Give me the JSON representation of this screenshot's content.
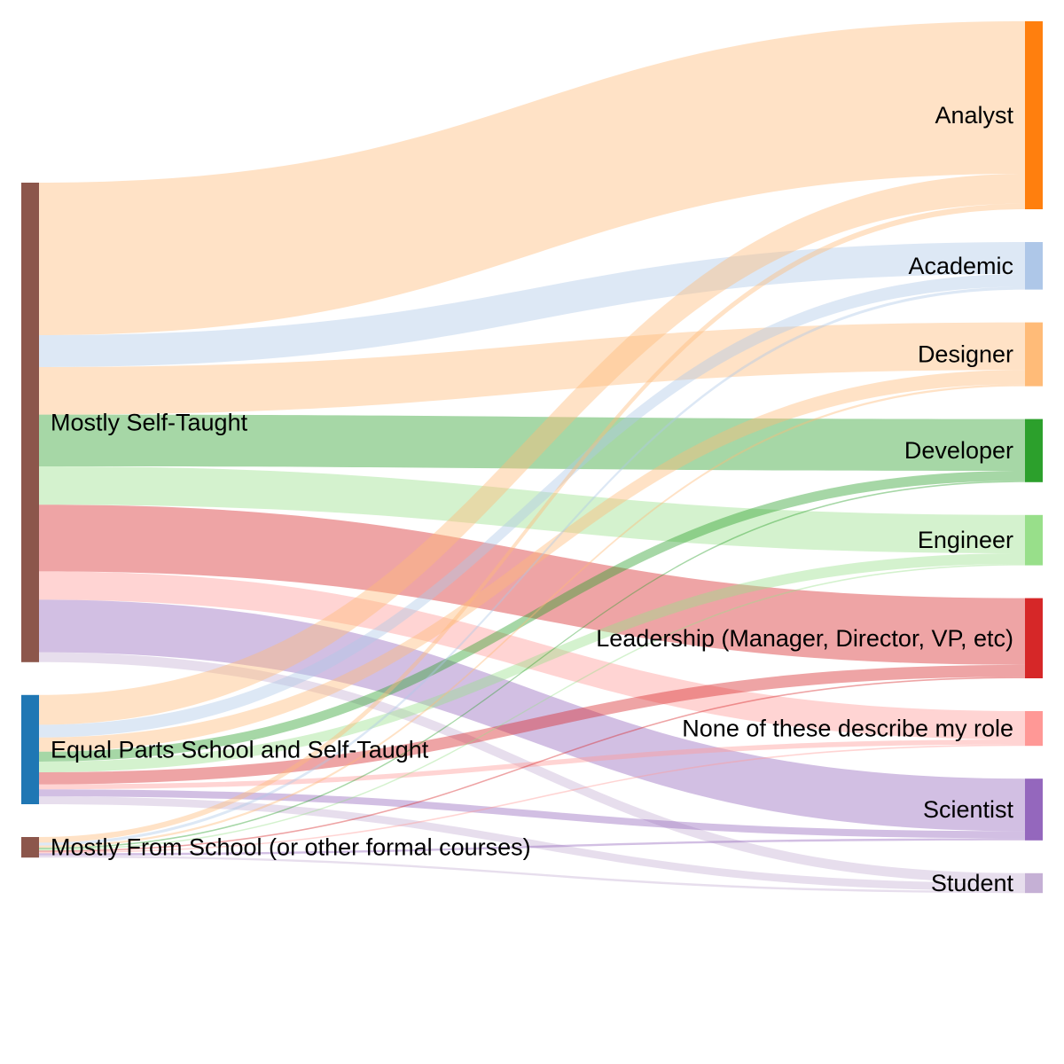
{
  "chart_data": {
    "type": "sankey",
    "sources": [
      {
        "id": "self",
        "label": "Mostly Self-Taught",
        "color": "#8c564b"
      },
      {
        "id": "equal",
        "label": "Equal Parts School and Self-Taught",
        "color": "#1f77b4"
      },
      {
        "id": "school",
        "label": "Mostly From School (or other formal courses)",
        "color": "#8c564b"
      }
    ],
    "targets": [
      {
        "id": "analyst",
        "label": "Analyst",
        "color": "#ff7f0e",
        "link_color": "#ffbb78"
      },
      {
        "id": "academic",
        "label": "Academic",
        "color": "#aec7e8",
        "link_color": "#aec7e8"
      },
      {
        "id": "designer",
        "label": "Designer",
        "color": "#ffbb78",
        "link_color": "#ffbb78"
      },
      {
        "id": "developer",
        "label": "Developer",
        "color": "#2ca02c",
        "link_color": "#2ca02c"
      },
      {
        "id": "engineer",
        "label": "Engineer",
        "color": "#98df8a",
        "link_color": "#98df8a"
      },
      {
        "id": "leadership",
        "label": "Leadership (Manager, Director, VP, etc)",
        "color": "#d62728",
        "link_color": "#d62728"
      },
      {
        "id": "none",
        "label": "None of these describe my role",
        "color": "#ff9896",
        "link_color": "#ff9896"
      },
      {
        "id": "scientist",
        "label": "Scientist",
        "color": "#9467bd",
        "link_color": "#9467bd"
      },
      {
        "id": "student",
        "label": "Student",
        "color": "#c5b0d5",
        "link_color": "#c5b0d5"
      }
    ],
    "links": [
      {
        "source": "self",
        "target": "analyst",
        "value": 215
      },
      {
        "source": "self",
        "target": "academic",
        "value": 45
      },
      {
        "source": "self",
        "target": "designer",
        "value": 67
      },
      {
        "source": "self",
        "target": "developer",
        "value": 73
      },
      {
        "source": "self",
        "target": "engineer",
        "value": 54
      },
      {
        "source": "self",
        "target": "leadership",
        "value": 94
      },
      {
        "source": "self",
        "target": "none",
        "value": 40
      },
      {
        "source": "self",
        "target": "scientist",
        "value": 74
      },
      {
        "source": "self",
        "target": "student",
        "value": 14
      },
      {
        "source": "equal",
        "target": "analyst",
        "value": 42
      },
      {
        "source": "equal",
        "target": "academic",
        "value": 18
      },
      {
        "source": "equal",
        "target": "designer",
        "value": 20
      },
      {
        "source": "equal",
        "target": "developer",
        "value": 14
      },
      {
        "source": "equal",
        "target": "engineer",
        "value": 15
      },
      {
        "source": "equal",
        "target": "leadership",
        "value": 17
      },
      {
        "source": "equal",
        "target": "none",
        "value": 7
      },
      {
        "source": "equal",
        "target": "scientist",
        "value": 10
      },
      {
        "source": "equal",
        "target": "student",
        "value": 11
      },
      {
        "source": "school",
        "target": "analyst",
        "value": 8
      },
      {
        "source": "school",
        "target": "academic",
        "value": 4
      },
      {
        "source": "school",
        "target": "designer",
        "value": 3
      },
      {
        "source": "school",
        "target": "developer",
        "value": 2
      },
      {
        "source": "school",
        "target": "engineer",
        "value": 2
      },
      {
        "source": "school",
        "target": "leadership",
        "value": 2
      },
      {
        "source": "school",
        "target": "none",
        "value": 2
      },
      {
        "source": "school",
        "target": "scientist",
        "value": 3
      },
      {
        "source": "school",
        "target": "student",
        "value": 3
      }
    ]
  }
}
